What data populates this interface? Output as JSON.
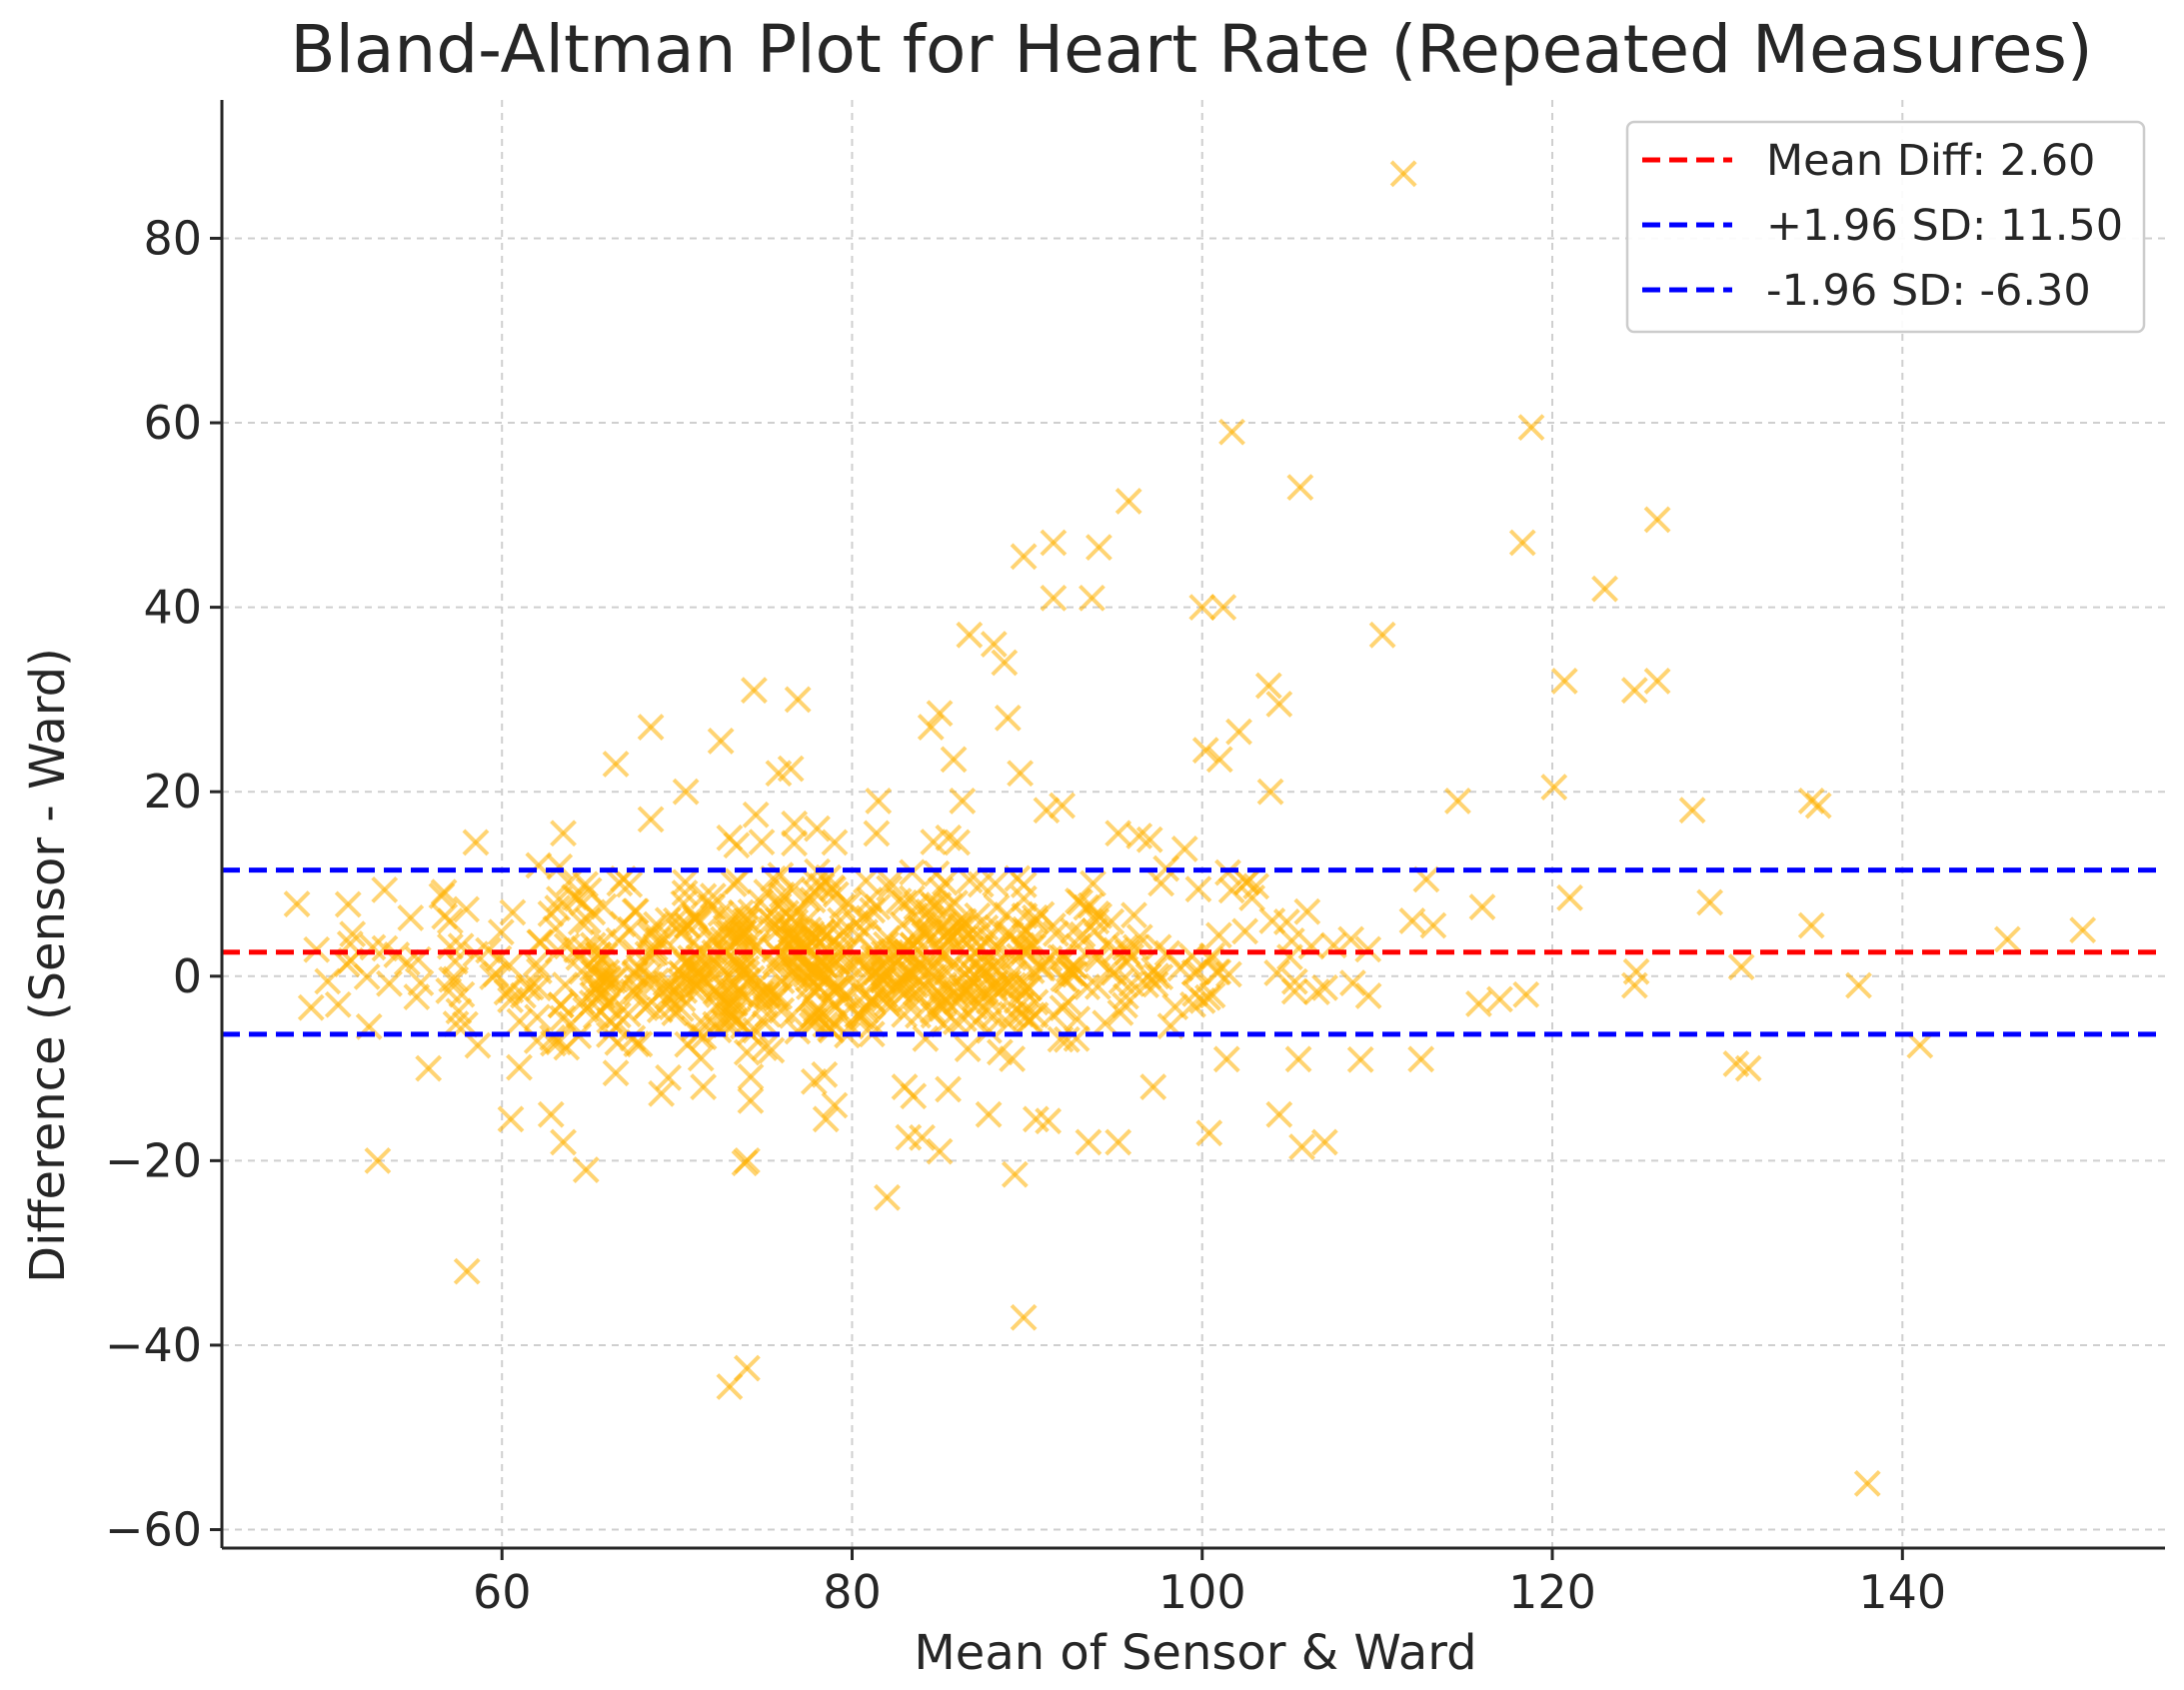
{
  "chart_data": {
    "type": "scatter",
    "title": "Bland-Altman Plot for Heart Rate (Repeated Measures)",
    "xlabel": "Mean of Sensor & Ward",
    "ylabel": "Difference (Sensor - Ward)",
    "xlim": [
      44,
      155
    ],
    "ylim": [
      -62,
      95
    ],
    "xticks": [
      60,
      80,
      100,
      120,
      140
    ],
    "yticks": [
      -60,
      -40,
      -20,
      0,
      20,
      40,
      60,
      80
    ],
    "xtick_labels": [
      "60",
      "80",
      "100",
      "120",
      "140"
    ],
    "ytick_labels": [
      "−60",
      "−40",
      "−20",
      "0",
      "20",
      "40",
      "60",
      "80"
    ],
    "grid": true,
    "legend_position": "top-right",
    "marker": "x",
    "marker_color": "#FFB000",
    "reference_lines": [
      {
        "label": "Mean Diff: 2.60",
        "y": 2.6,
        "color": "#FF0000",
        "style": "dashed"
      },
      {
        "label": "+1.96 SD: 11.50",
        "y": 11.5,
        "color": "#0000FF",
        "style": "dashed"
      },
      {
        "label": "-1.96 SD: -6.30",
        "y": -6.3,
        "color": "#0000FF",
        "style": "dashed"
      }
    ],
    "outliers": [
      [
        111.5,
        87
      ],
      [
        118.8,
        59.5
      ],
      [
        101.7,
        59
      ],
      [
        105.6,
        53
      ],
      [
        95.8,
        51.5
      ],
      [
        126,
        49.5
      ],
      [
        118.3,
        47
      ],
      [
        91.5,
        47
      ],
      [
        94.1,
        46.5
      ],
      [
        89.8,
        45.5
      ],
      [
        123,
        42
      ],
      [
        91.5,
        41
      ],
      [
        93.7,
        41
      ],
      [
        100,
        40
      ],
      [
        101.2,
        40
      ],
      [
        110.3,
        37
      ],
      [
        86.7,
        37
      ],
      [
        88.1,
        36
      ],
      [
        88.7,
        34
      ],
      [
        120.7,
        32
      ],
      [
        126,
        32
      ],
      [
        74.4,
        31
      ],
      [
        124.7,
        31
      ],
      [
        103.8,
        31.5
      ],
      [
        76.9,
        30
      ],
      [
        104.4,
        29.5
      ],
      [
        85,
        28.5
      ],
      [
        88.9,
        28
      ],
      [
        84.5,
        27
      ],
      [
        68.5,
        27
      ],
      [
        102.1,
        26.5
      ],
      [
        72.5,
        25.5
      ],
      [
        100.2,
        24.5
      ],
      [
        101,
        23.5
      ],
      [
        85.8,
        23.5
      ],
      [
        66.5,
        23
      ],
      [
        89.6,
        22
      ],
      [
        75.8,
        22
      ],
      [
        76.5,
        22.5
      ],
      [
        120.1,
        20.5
      ],
      [
        70.5,
        20
      ],
      [
        103.9,
        20
      ],
      [
        86.3,
        19
      ],
      [
        81.5,
        19
      ],
      [
        92,
        18.5
      ],
      [
        114.6,
        19
      ],
      [
        134.8,
        19
      ],
      [
        135.2,
        18.5
      ],
      [
        128,
        18
      ],
      [
        74.5,
        17.5
      ],
      [
        68.5,
        17
      ],
      [
        78,
        16
      ],
      [
        79,
        14.5
      ],
      [
        73,
        15
      ],
      [
        58.5,
        14.5
      ],
      [
        63.5,
        15.5
      ],
      [
        73.4,
        14.2
      ],
      [
        85.5,
        15
      ],
      [
        86,
        14.5
      ],
      [
        95.2,
        15.5
      ],
      [
        96.4,
        15.2
      ],
      [
        97,
        14.8
      ],
      [
        99,
        13.8
      ],
      [
        129,
        8
      ],
      [
        134.8,
        5.5
      ],
      [
        146,
        4
      ],
      [
        150.3,
        5
      ],
      [
        137.5,
        -1
      ],
      [
        141,
        -7.5
      ],
      [
        130.5,
        -9.5
      ],
      [
        131.2,
        -10
      ],
      [
        130.8,
        1
      ],
      [
        121,
        8.5
      ],
      [
        52.9,
        -20
      ],
      [
        58,
        -32
      ],
      [
        64.8,
        -21
      ],
      [
        60.5,
        -15.5
      ],
      [
        62.8,
        -15
      ],
      [
        63.5,
        -18
      ],
      [
        74,
        -20
      ],
      [
        82,
        -24
      ],
      [
        89.3,
        -21.5
      ],
      [
        89.8,
        -37
      ],
      [
        73,
        -44.5
      ],
      [
        74,
        -42.5
      ],
      [
        93.5,
        -18
      ],
      [
        95.2,
        -18
      ],
      [
        97.2,
        -12
      ],
      [
        100.4,
        -17
      ],
      [
        105.7,
        -18.5
      ],
      [
        107,
        -18
      ],
      [
        104.4,
        -15
      ],
      [
        101.4,
        -9
      ],
      [
        105.5,
        -9
      ],
      [
        112.5,
        -9
      ],
      [
        115.8,
        -3
      ],
      [
        117,
        -2.5
      ],
      [
        118.5,
        -2
      ],
      [
        124.7,
        -1
      ],
      [
        124.8,
        0.5
      ],
      [
        138,
        -55
      ],
      [
        90.5,
        -15.5
      ],
      [
        91.2,
        -15.7
      ],
      [
        87.8,
        -15
      ],
      [
        79,
        -14
      ],
      [
        78.5,
        -15.5
      ],
      [
        83,
        -12
      ],
      [
        83.5,
        -13
      ],
      [
        84,
        -17.5
      ],
      [
        85,
        -19
      ],
      [
        62,
        -7
      ],
      [
        69.5,
        -11
      ],
      [
        71.5,
        -12
      ],
      [
        74.2,
        -13.5
      ],
      [
        55.8,
        -10
      ],
      [
        66.5,
        -10.5
      ],
      [
        112,
        6
      ],
      [
        113.2,
        5.5
      ],
      [
        112.8,
        10.5
      ],
      [
        116,
        7.5
      ],
      [
        108.5,
        4
      ],
      [
        106,
        7
      ],
      [
        104,
        6
      ]
    ],
    "cluster": {
      "approx_points": 780,
      "x_range": [
        48,
        112
      ],
      "center_y": 2.6,
      "y_spread_sd": 4.5
    }
  }
}
